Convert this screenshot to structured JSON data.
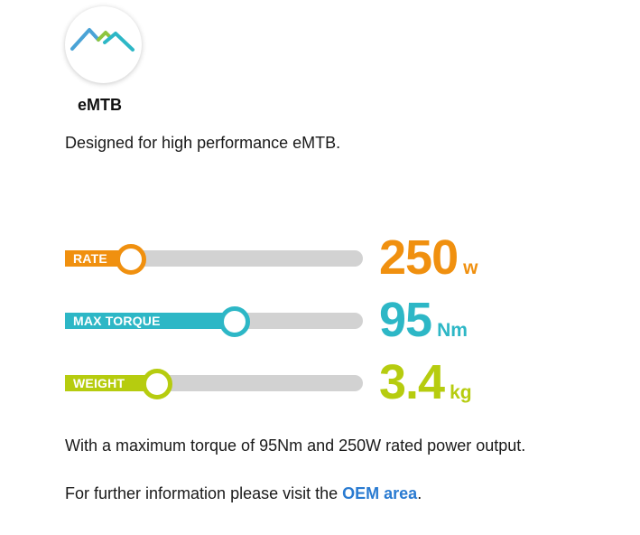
{
  "product": {
    "logo_icon": "mountain-peaks-logo",
    "name": "eMTB",
    "tagline": "Designed for high performance eMTB."
  },
  "specs": [
    {
      "key": "rate",
      "label": "RATE",
      "value": "250",
      "unit": "w",
      "color": "#f0900f",
      "level": 0.22
    },
    {
      "key": "torque",
      "label": "MAX TORQUE",
      "value": "95",
      "unit": "Nm",
      "color": "#2db7c6",
      "level": 0.57
    },
    {
      "key": "weight",
      "label": "WEIGHT",
      "value": "3.4",
      "unit": "kg",
      "color": "#b6cc0f",
      "level": 0.31
    }
  ],
  "summary": "With a maximum torque of 95Nm and 250W rated power output.",
  "info": {
    "prefix": "For further information please visit the ",
    "link_label": "OEM area",
    "suffix": "."
  },
  "colors": {
    "link": "#2a7bd1",
    "track": "#d2d2d2"
  }
}
